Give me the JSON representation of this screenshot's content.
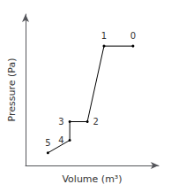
{
  "chart_data": {
    "type": "line",
    "x": [
      26.6,
      20.5,
      17.0,
      13.3,
      13.3,
      8.7
    ],
    "values": [
      13700,
      13700,
      4710,
      4710,
      2500,
      1000
    ],
    "labels": [
      "0",
      "1",
      "2",
      "3",
      "4",
      "5"
    ],
    "xlabel": "Volume (m³)",
    "ylabel": "Pressure (Pa)",
    "xlim": [
      4,
      32
    ],
    "ylim": [
      -500,
      17500
    ],
    "tick_labels": false,
    "grid": false,
    "color": "#000000"
  }
}
